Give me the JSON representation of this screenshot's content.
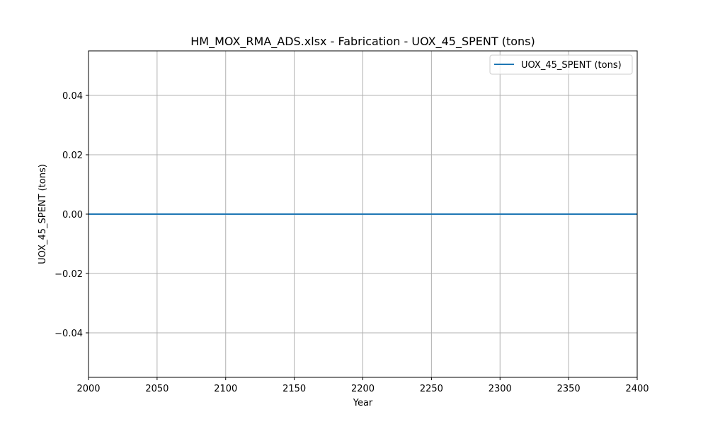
{
  "chart_data": {
    "type": "line",
    "title": "HM_MOX_RMA_ADS.xlsx - Fabrication - UOX_45_SPENT (tons)",
    "xlabel": "Year",
    "ylabel": "UOX_45_SPENT (tons)",
    "xlim": [
      2000,
      2400
    ],
    "ylim": [
      -0.055,
      0.055
    ],
    "xticks": [
      2000,
      2050,
      2100,
      2150,
      2200,
      2250,
      2300,
      2350,
      2400
    ],
    "yticks": [
      -0.04,
      -0.02,
      0.0,
      0.02,
      0.04
    ],
    "ytick_labels": [
      "−0.04",
      "−0.02",
      "0.00",
      "0.02",
      "0.04"
    ],
    "grid": true,
    "legend_position": "top-right",
    "series": [
      {
        "name": "UOX_45_SPENT (tons)",
        "color": "#1f77b4",
        "x": [
          2000,
          2400
        ],
        "y": [
          0,
          0
        ]
      }
    ]
  }
}
